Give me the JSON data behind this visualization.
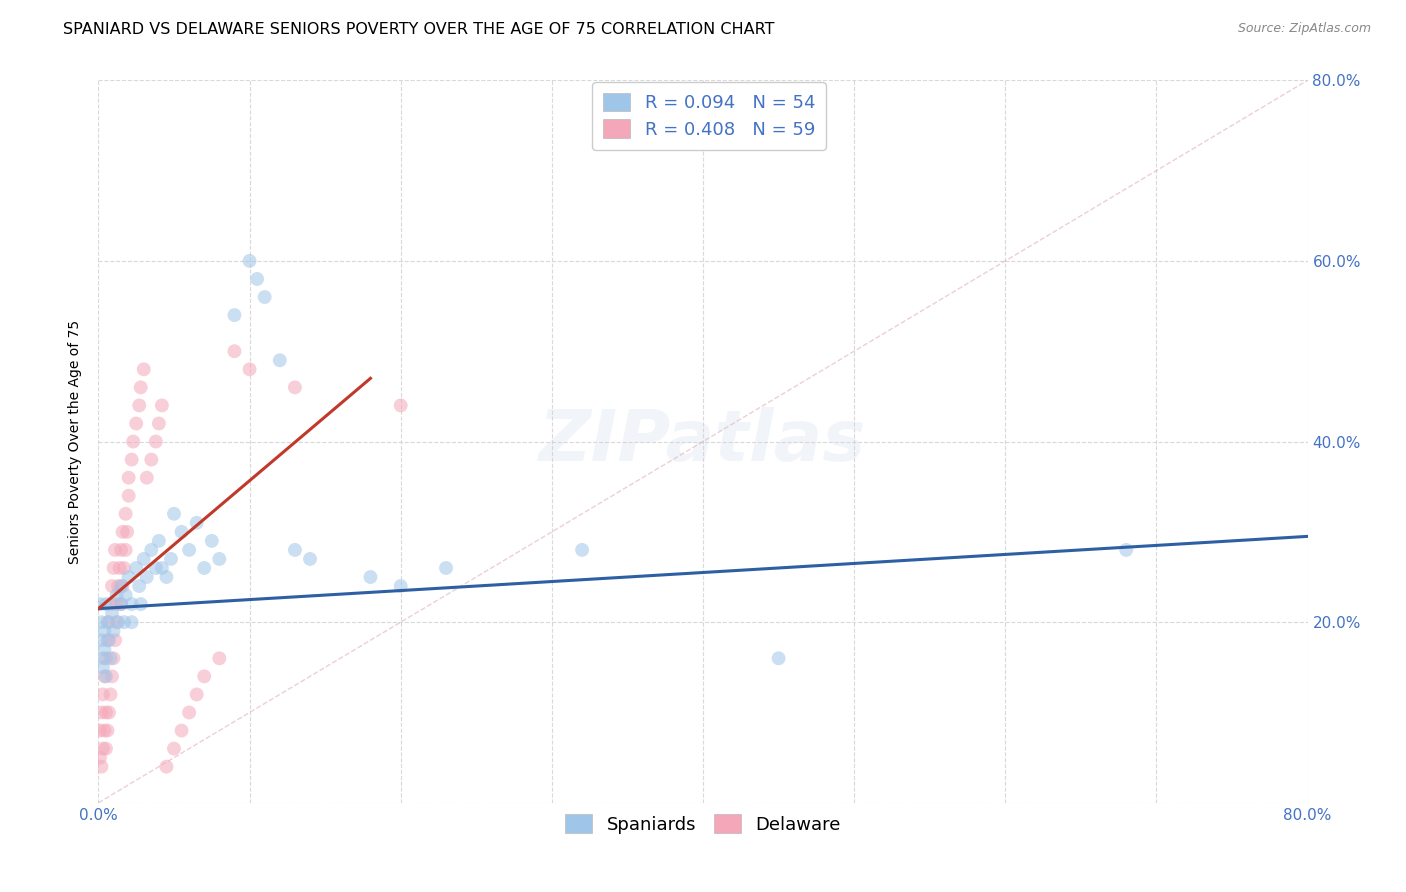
{
  "title": "SPANIARD VS DELAWARE SENIORS POVERTY OVER THE AGE OF 75 CORRELATION CHART",
  "source": "Source: ZipAtlas.com",
  "ylabel": "Seniors Poverty Over the Age of 75",
  "xlim": [
    0,
    0.8
  ],
  "ylim": [
    0,
    0.8
  ],
  "xtick_positions": [
    0.0,
    0.1,
    0.2,
    0.3,
    0.4,
    0.5,
    0.6,
    0.7,
    0.8
  ],
  "ytick_positions": [
    0.0,
    0.2,
    0.4,
    0.6,
    0.8
  ],
  "xtick_labels": [
    "0.0%",
    "",
    "",
    "",
    "",
    "",
    "",
    "",
    "80.0%"
  ],
  "ytick_labels": [
    "",
    "20.0%",
    "40.0%",
    "60.0%",
    "80.0%"
  ],
  "grid_color": "#d0d0d0",
  "background_color": "#ffffff",
  "spaniards_color": "#9fc5e8",
  "delaware_color": "#f4a7b9",
  "spaniards_line_color": "#2e5fa3",
  "delaware_line_color": "#c0392b",
  "diagonal_color": "#e8c0c8",
  "R_spaniards": 0.094,
  "N_spaniards": 54,
  "R_delaware": 0.408,
  "N_delaware": 59,
  "spaniards_x": [
    0.001,
    0.002,
    0.002,
    0.003,
    0.003,
    0.004,
    0.004,
    0.005,
    0.005,
    0.006,
    0.007,
    0.008,
    0.009,
    0.01,
    0.012,
    0.013,
    0.015,
    0.015,
    0.017,
    0.018,
    0.02,
    0.022,
    0.022,
    0.025,
    0.027,
    0.028,
    0.03,
    0.032,
    0.035,
    0.038,
    0.04,
    0.042,
    0.045,
    0.048,
    0.05,
    0.055,
    0.06,
    0.065,
    0.07,
    0.075,
    0.08,
    0.09,
    0.1,
    0.105,
    0.11,
    0.12,
    0.13,
    0.14,
    0.18,
    0.2,
    0.23,
    0.32,
    0.45,
    0.68
  ],
  "spaniards_y": [
    0.22,
    0.2,
    0.18,
    0.16,
    0.15,
    0.19,
    0.17,
    0.22,
    0.14,
    0.2,
    0.18,
    0.16,
    0.21,
    0.19,
    0.23,
    0.2,
    0.24,
    0.22,
    0.2,
    0.23,
    0.25,
    0.22,
    0.2,
    0.26,
    0.24,
    0.22,
    0.27,
    0.25,
    0.28,
    0.26,
    0.29,
    0.26,
    0.25,
    0.27,
    0.32,
    0.3,
    0.28,
    0.31,
    0.26,
    0.29,
    0.27,
    0.54,
    0.6,
    0.58,
    0.56,
    0.49,
    0.28,
    0.27,
    0.25,
    0.24,
    0.26,
    0.28,
    0.16,
    0.28
  ],
  "delaware_x": [
    0.001,
    0.001,
    0.002,
    0.002,
    0.003,
    0.003,
    0.004,
    0.004,
    0.005,
    0.005,
    0.005,
    0.006,
    0.006,
    0.007,
    0.007,
    0.008,
    0.008,
    0.009,
    0.009,
    0.01,
    0.01,
    0.011,
    0.011,
    0.012,
    0.012,
    0.013,
    0.014,
    0.015,
    0.015,
    0.016,
    0.016,
    0.017,
    0.018,
    0.018,
    0.019,
    0.02,
    0.02,
    0.022,
    0.023,
    0.025,
    0.027,
    0.028,
    0.03,
    0.032,
    0.035,
    0.038,
    0.04,
    0.042,
    0.045,
    0.05,
    0.055,
    0.06,
    0.065,
    0.07,
    0.08,
    0.09,
    0.1,
    0.13,
    0.2
  ],
  "delaware_y": [
    0.05,
    0.08,
    0.04,
    0.1,
    0.06,
    0.12,
    0.08,
    0.14,
    0.06,
    0.1,
    0.16,
    0.08,
    0.18,
    0.1,
    0.2,
    0.12,
    0.22,
    0.14,
    0.24,
    0.16,
    0.26,
    0.18,
    0.28,
    0.2,
    0.22,
    0.24,
    0.26,
    0.28,
    0.22,
    0.24,
    0.3,
    0.26,
    0.28,
    0.32,
    0.3,
    0.34,
    0.36,
    0.38,
    0.4,
    0.42,
    0.44,
    0.46,
    0.48,
    0.36,
    0.38,
    0.4,
    0.42,
    0.44,
    0.04,
    0.06,
    0.08,
    0.1,
    0.12,
    0.14,
    0.16,
    0.5,
    0.48,
    0.46,
    0.44
  ],
  "marker_size": 100,
  "marker_alpha": 0.55,
  "title_fontsize": 11.5,
  "source_fontsize": 9,
  "axis_label_fontsize": 10,
  "tick_fontsize": 11,
  "legend_fontsize": 13,
  "tick_color": "#4472c4",
  "watermark_text": "ZIPatlas",
  "watermark_fontsize": 52,
  "watermark_alpha": 0.07,
  "watermark_color": "#4472c4"
}
